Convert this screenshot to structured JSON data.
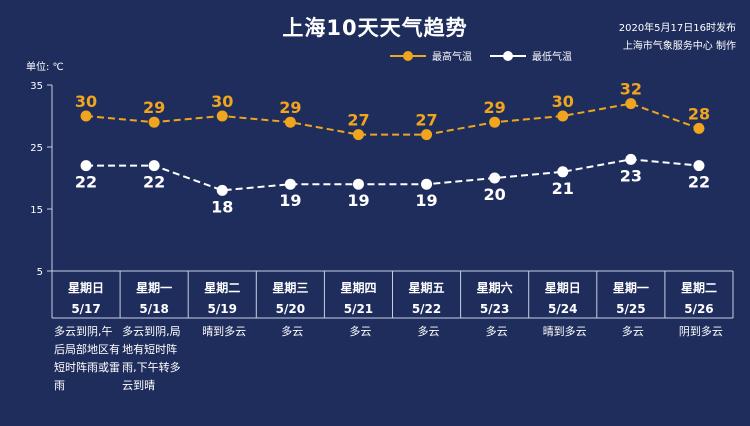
{
  "header": {
    "title": "上海10天天气趋势",
    "publish_time": "2020年5月17日16时发布",
    "publisher": "上海市气象服务中心 制作"
  },
  "colors": {
    "background": "#1f2d5c",
    "high": "#f0a51e",
    "low": "#ffffff",
    "axis": "#c8cfe6"
  },
  "chart_data": {
    "type": "line",
    "unit_label": "单位: ℃",
    "ylim": [
      5,
      35
    ],
    "yticks": [
      5,
      15,
      25,
      35
    ],
    "legend_position": "top-center",
    "series": [
      {
        "name": "最高气温",
        "values": [
          30,
          29,
          30,
          29,
          27,
          27,
          29,
          30,
          32,
          28
        ]
      },
      {
        "name": "最低气温",
        "values": [
          22,
          22,
          18,
          19,
          19,
          19,
          20,
          21,
          23,
          22
        ]
      }
    ],
    "days": [
      {
        "weekday": "星期日",
        "date": "5/17",
        "weather": "多云到阴,午后局部地区有短时阵雨或雷雨"
      },
      {
        "weekday": "星期一",
        "date": "5/18",
        "weather": "多云到阴,局地有短时阵雨,下午转多云到晴"
      },
      {
        "weekday": "星期二",
        "date": "5/19",
        "weather": "晴到多云"
      },
      {
        "weekday": "星期三",
        "date": "5/20",
        "weather": "多云"
      },
      {
        "weekday": "星期四",
        "date": "5/21",
        "weather": "多云"
      },
      {
        "weekday": "星期五",
        "date": "5/22",
        "weather": "多云"
      },
      {
        "weekday": "星期六",
        "date": "5/23",
        "weather": "多云"
      },
      {
        "weekday": "星期日",
        "date": "5/24",
        "weather": "晴到多云"
      },
      {
        "weekday": "星期一",
        "date": "5/25",
        "weather": "多云"
      },
      {
        "weekday": "星期二",
        "date": "5/26",
        "weather": "阴到多云"
      }
    ]
  }
}
